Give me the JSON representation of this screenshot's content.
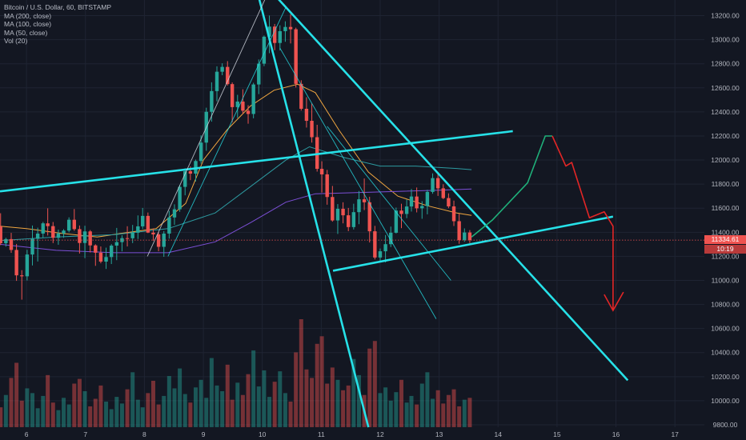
{
  "header": {
    "symbol": "Bitcoin / U.S. Dollar, 60, BITSTAMP",
    "indicators": [
      "MA (200, close)",
      "MA (100, close)",
      "MA (50, close)",
      "Vol (20)"
    ]
  },
  "price_tag": {
    "value": "11334.61",
    "countdown": "10:19"
  },
  "colors": {
    "background": "#131722",
    "grid": "#1f2433",
    "up": "#26a69a",
    "down": "#ef5350",
    "trendline": "#26e1e8",
    "projection_up": "#1fb07a",
    "projection_down": "#e32626",
    "ma50": "#f0a640",
    "ma100": "#2d9aa0",
    "ma200": "#7c4fd6"
  },
  "chart_data": {
    "type": "candlestick",
    "title": "Bitcoin / U.S. Dollar, 60, BITSTAMP",
    "x_axis": {
      "ticks": [
        "6",
        "7",
        "8",
        "9",
        "10",
        "11",
        "12",
        "13",
        "14",
        "15",
        "16",
        "17"
      ],
      "range_days": [
        5.55,
        17.5
      ]
    },
    "y_axis": {
      "ticks": [
        9800,
        10000,
        10200,
        10400,
        10600,
        10800,
        11000,
        11200,
        11400,
        11600,
        11800,
        12000,
        12200,
        12400,
        12600,
        12800,
        13000,
        13200
      ],
      "range": [
        9780,
        13330
      ],
      "position": "right"
    },
    "grid": true,
    "last_price": 11334.61,
    "series": [
      {
        "name": "MA (50, close)",
        "points": [
          [
            5.55,
            11450
          ],
          [
            6.0,
            11430
          ],
          [
            6.6,
            11390
          ],
          [
            7.2,
            11360
          ],
          [
            7.6,
            11390
          ],
          [
            8.2,
            11430
          ],
          [
            8.7,
            11640
          ],
          [
            9.0,
            12000
          ],
          [
            9.4,
            12250
          ],
          [
            9.8,
            12450
          ],
          [
            10.2,
            12580
          ],
          [
            10.6,
            12630
          ],
          [
            10.9,
            12560
          ],
          [
            11.3,
            12250
          ],
          [
            11.8,
            11900
          ],
          [
            12.3,
            11700
          ],
          [
            12.8,
            11620
          ],
          [
            13.3,
            11560
          ],
          [
            13.55,
            11540
          ]
        ]
      },
      {
        "name": "MA (100, close)",
        "points": [
          [
            5.55,
            11330
          ],
          [
            6.5,
            11360
          ],
          [
            7.5,
            11380
          ],
          [
            8.4,
            11430
          ],
          [
            9.2,
            11560
          ],
          [
            9.8,
            11780
          ],
          [
            10.4,
            12000
          ],
          [
            10.8,
            12110
          ],
          [
            11.4,
            12020
          ],
          [
            12.0,
            11950
          ],
          [
            12.6,
            11950
          ],
          [
            13.3,
            11930
          ],
          [
            13.55,
            11920
          ]
        ]
      },
      {
        "name": "MA (200, close)",
        "points": [
          [
            5.55,
            11300
          ],
          [
            6.5,
            11250
          ],
          [
            7.5,
            11230
          ],
          [
            8.4,
            11230
          ],
          [
            9.2,
            11320
          ],
          [
            9.8,
            11480
          ],
          [
            10.4,
            11650
          ],
          [
            10.9,
            11720
          ],
          [
            11.6,
            11730
          ],
          [
            12.3,
            11740
          ],
          [
            13.0,
            11750
          ],
          [
            13.55,
            11760
          ]
        ]
      }
    ],
    "drawn_lines": [
      {
        "label": "channel-top",
        "from": [
          5.55,
          11740
        ],
        "to": [
          14.25,
          12240
        ]
      },
      {
        "label": "channel-bottom",
        "from": [
          11.2,
          11080
        ],
        "to": [
          15.95,
          11530
        ]
      },
      {
        "label": "descending-resistance",
        "from": [
          10.1,
          13430
        ],
        "to": [
          16.2,
          10170
        ]
      },
      {
        "label": "steep-line",
        "from": [
          9.9,
          13430
        ],
        "to": [
          11.8,
          9780
        ]
      },
      {
        "label": "wedge-left",
        "from": [
          8.05,
          11200
        ],
        "to": [
          10.05,
          13340
        ]
      },
      {
        "label": "wedge-right",
        "from": [
          8.4,
          11200
        ],
        "to": [
          10.4,
          13270
        ]
      },
      {
        "label": "inner-fan",
        "from": [
          10.3,
          12930
        ],
        "to": [
          12.95,
          10680
        ]
      },
      {
        "label": "inner-channel",
        "from": [
          11.1,
          12280
        ],
        "to": [
          13.2,
          11000
        ]
      }
    ],
    "projection": [
      [
        13.55,
        11360
      ],
      [
        13.9,
        11500
      ],
      [
        14.5,
        11810
      ],
      [
        14.8,
        12200
      ],
      [
        14.92,
        12200
      ],
      [
        15.15,
        11950
      ],
      [
        15.25,
        11980
      ],
      [
        15.55,
        11520
      ],
      [
        15.8,
        11570
      ],
      [
        15.95,
        11450
      ],
      [
        15.95,
        10750
      ]
    ],
    "candles": [
      [
        5.56,
        11449,
        11558,
        11293,
        11309
      ],
      [
        5.65,
        11309,
        11354,
        11281,
        11343
      ],
      [
        5.74,
        11343,
        11395,
        11229,
        11253
      ],
      [
        5.83,
        11253,
        11303,
        10996,
        11042
      ],
      [
        5.92,
        11042,
        11085,
        10840,
        11034
      ],
      [
        6.01,
        11034,
        11254,
        10999,
        11215
      ],
      [
        6.1,
        11215,
        11456,
        11124,
        11346
      ],
      [
        6.19,
        11346,
        11438,
        11157,
        11389
      ],
      [
        6.28,
        11389,
        11486,
        11352,
        11474
      ],
      [
        6.36,
        11474,
        11599,
        11373,
        11451
      ],
      [
        6.45,
        11451,
        11485,
        11310,
        11354
      ],
      [
        6.54,
        11354,
        11422,
        11296,
        11390
      ],
      [
        6.63,
        11390,
        11426,
        11354,
        11414
      ],
      [
        6.72,
        11414,
        11524,
        11399,
        11504
      ],
      [
        6.81,
        11504,
        11593,
        11412,
        11426
      ],
      [
        6.9,
        11426,
        11456,
        11223,
        11311
      ],
      [
        6.99,
        11311,
        11454,
        11185,
        11407
      ],
      [
        7.08,
        11407,
        11418,
        11232,
        11291
      ],
      [
        7.17,
        11291,
        11300,
        11121,
        11230
      ],
      [
        7.26,
        11230,
        11282,
        11142,
        11156
      ],
      [
        7.35,
        11156,
        11272,
        11095,
        11194
      ],
      [
        7.44,
        11194,
        11301,
        11136,
        11289
      ],
      [
        7.53,
        11289,
        11436,
        11168,
        11318
      ],
      [
        7.62,
        11318,
        11375,
        11241,
        11351
      ],
      [
        7.71,
        11351,
        11450,
        11282,
        11350
      ],
      [
        7.8,
        11350,
        11461,
        11310,
        11396
      ],
      [
        7.89,
        11396,
        11540,
        11344,
        11449
      ],
      [
        7.97,
        11449,
        11602,
        11427,
        11536
      ],
      [
        8.06,
        11536,
        11564,
        11393,
        11397
      ],
      [
        8.15,
        11397,
        11432,
        11330,
        11382
      ],
      [
        8.24,
        11382,
        11399,
        11242,
        11279
      ],
      [
        8.33,
        11279,
        11410,
        11196,
        11389
      ],
      [
        8.42,
        11389,
        11578,
        11347,
        11523
      ],
      [
        8.51,
        11523,
        11632,
        11462,
        11591
      ],
      [
        8.6,
        11591,
        11793,
        11570,
        11777
      ],
      [
        8.69,
        11777,
        11931,
        11707,
        11907
      ],
      [
        8.78,
        11907,
        11947,
        11833,
        11887
      ],
      [
        8.87,
        11887,
        12004,
        11822,
        11992
      ],
      [
        8.96,
        11992,
        12205,
        11970,
        12145
      ],
      [
        9.05,
        12145,
        12435,
        12077,
        12401
      ],
      [
        9.14,
        12401,
        12646,
        12319,
        12573
      ],
      [
        9.23,
        12573,
        12779,
        12488,
        12734
      ],
      [
        9.32,
        12734,
        12804,
        12705,
        12774
      ],
      [
        9.41,
        12774,
        12822,
        12619,
        12631
      ],
      [
        9.49,
        12631,
        12645,
        12314,
        12440
      ],
      [
        9.58,
        12440,
        12542,
        12350,
        12486
      ],
      [
        9.67,
        12486,
        12588,
        12383,
        12410
      ],
      [
        9.76,
        12410,
        12456,
        12302,
        12383
      ],
      [
        9.85,
        12383,
        12642,
        12347,
        12628
      ],
      [
        9.94,
        12628,
        12836,
        12548,
        12801
      ],
      [
        10.03,
        12801,
        13035,
        12780,
        13025
      ],
      [
        10.12,
        13025,
        13201,
        12888,
        13109
      ],
      [
        10.21,
        13109,
        13131,
        12913,
        12973
      ],
      [
        10.3,
        12973,
        13120,
        12911,
        13071
      ],
      [
        10.39,
        13071,
        13153,
        12983,
        13106
      ],
      [
        10.48,
        13106,
        13212,
        12969,
        13087
      ],
      [
        10.57,
        13087,
        13100,
        12603,
        12633
      ],
      [
        10.66,
        12633,
        12663,
        12411,
        12426
      ],
      [
        10.75,
        12426,
        12522,
        12270,
        12326
      ],
      [
        10.84,
        12326,
        12470,
        12145,
        12190
      ],
      [
        10.93,
        12190,
        12293,
        11904,
        11927
      ],
      [
        11.01,
        11927,
        11990,
        11730,
        11881
      ],
      [
        11.1,
        11881,
        11918,
        11629,
        11693
      ],
      [
        11.19,
        11693,
        11785,
        11488,
        11498
      ],
      [
        11.28,
        11498,
        11634,
        11386,
        11595
      ],
      [
        11.37,
        11595,
        11649,
        11474,
        11541
      ],
      [
        11.46,
        11541,
        11602,
        11409,
        11443
      ],
      [
        11.55,
        11443,
        11637,
        11423,
        11567
      ],
      [
        11.64,
        11567,
        11743,
        11467,
        11674
      ],
      [
        11.73,
        11674,
        11847,
        11584,
        11649
      ],
      [
        11.82,
        11649,
        11695,
        11315,
        11408
      ],
      [
        11.91,
        11408,
        11453,
        11174,
        11190
      ],
      [
        12.0,
        11190,
        11265,
        11159,
        11242
      ],
      [
        12.09,
        11242,
        11377,
        11149,
        11301
      ],
      [
        12.18,
        11301,
        11447,
        11277,
        11396
      ],
      [
        12.27,
        11396,
        11605,
        11390,
        11580
      ],
      [
        12.36,
        11580,
        11637,
        11434,
        11552
      ],
      [
        12.45,
        11552,
        11671,
        11517,
        11614
      ],
      [
        12.53,
        11614,
        11760,
        11572,
        11697
      ],
      [
        12.62,
        11697,
        11772,
        11565,
        11599
      ],
      [
        12.71,
        11599,
        11658,
        11512,
        11618
      ],
      [
        12.8,
        11618,
        11753,
        11549,
        11735
      ],
      [
        12.89,
        11735,
        11889,
        11720,
        11850
      ],
      [
        12.98,
        11850,
        11892,
        11702,
        11765
      ],
      [
        13.07,
        11765,
        11799,
        11675,
        11684
      ],
      [
        13.16,
        11684,
        11723,
        11600,
        11615
      ],
      [
        13.25,
        11615,
        11663,
        11452,
        11492
      ],
      [
        13.34,
        11492,
        11555,
        11304,
        11335
      ],
      [
        13.43,
        11335,
        11432,
        11321,
        11398
      ],
      [
        13.52,
        11398,
        11418,
        11310,
        11335
      ]
    ],
    "volumes": [
      2.1,
      3.4,
      5.2,
      6.8,
      2.8,
      4.1,
      3.6,
      2.0,
      3.3,
      5.5,
      2.6,
      1.8,
      3.1,
      2.4,
      4.6,
      5.1,
      3.8,
      2.2,
      3.0,
      4.4,
      2.7,
      1.9,
      3.2,
      2.5,
      4.0,
      5.8,
      2.9,
      2.1,
      3.6,
      4.9,
      2.4,
      3.3,
      5.4,
      4.1,
      6.2,
      3.5,
      2.6,
      4.2,
      5.0,
      3.1,
      7.3,
      4.4,
      3.8,
      6.6,
      2.9,
      4.7,
      3.4,
      5.6,
      8.1,
      4.3,
      6.0,
      3.2,
      4.8,
      5.9,
      3.6,
      2.7,
      7.9,
      11.4,
      6.1,
      5.2,
      8.8,
      9.6,
      4.6,
      6.3,
      5.0,
      3.9,
      4.4,
      7.2,
      5.5,
      3.4,
      8.3,
      9.1,
      3.6,
      4.2,
      2.8,
      3.7,
      5.0,
      2.6,
      3.3,
      2.4,
      4.6,
      5.8,
      3.0,
      3.9,
      2.5,
      3.4,
      4.0,
      2.2,
      2.9,
      3.1
    ]
  }
}
